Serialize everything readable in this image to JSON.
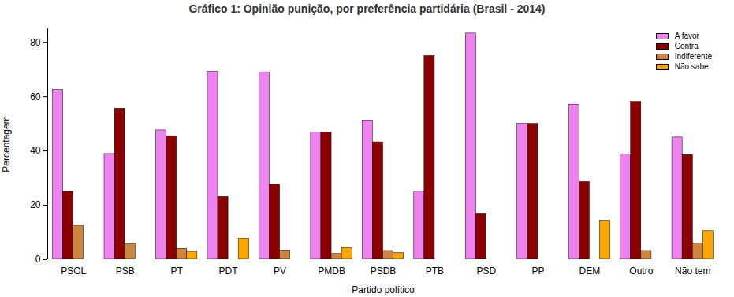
{
  "chart_data": {
    "type": "bar",
    "title": "Gráfico 1: Opinião punição, por preferência partidária (Brasil - 2014)",
    "x_label": "Partido político",
    "y_label": "Percentagem",
    "categories": [
      "PSOL",
      "PSB",
      "PT",
      "PDT",
      "PV",
      "PMDB",
      "PSDB",
      "PTB",
      "PSD",
      "PP",
      "DEM",
      "Outro",
      "Não tem"
    ],
    "series": [
      {
        "name": "A favor",
        "color": "#ee82ee",
        "values": [
          62.5,
          38.9,
          47.6,
          69.2,
          69.0,
          46.8,
          51.2,
          25.0,
          83.3,
          50.0,
          57.1,
          38.7,
          45.0
        ]
      },
      {
        "name": "Contra",
        "color": "#8b0000",
        "values": [
          25.0,
          55.6,
          45.5,
          23.1,
          27.6,
          46.8,
          43.2,
          75.0,
          16.7,
          50.0,
          28.6,
          58.1,
          38.5
        ]
      },
      {
        "name": "Indiferente",
        "color": "#cd853f",
        "values": [
          12.5,
          5.6,
          4.0,
          0,
          3.4,
          2.1,
          3.2,
          0,
          0,
          0,
          0,
          3.2,
          6.0
        ]
      },
      {
        "name": "Não sabe",
        "color": "#ffa500",
        "values": [
          0,
          0,
          2.9,
          7.7,
          0,
          4.3,
          2.4,
          0,
          0,
          0,
          14.3,
          0,
          10.5
        ]
      }
    ],
    "ylim": [
      0,
      85
    ],
    "yticks": [
      0,
      20,
      40,
      60,
      80
    ],
    "legend": "top-right",
    "grid": false
  }
}
